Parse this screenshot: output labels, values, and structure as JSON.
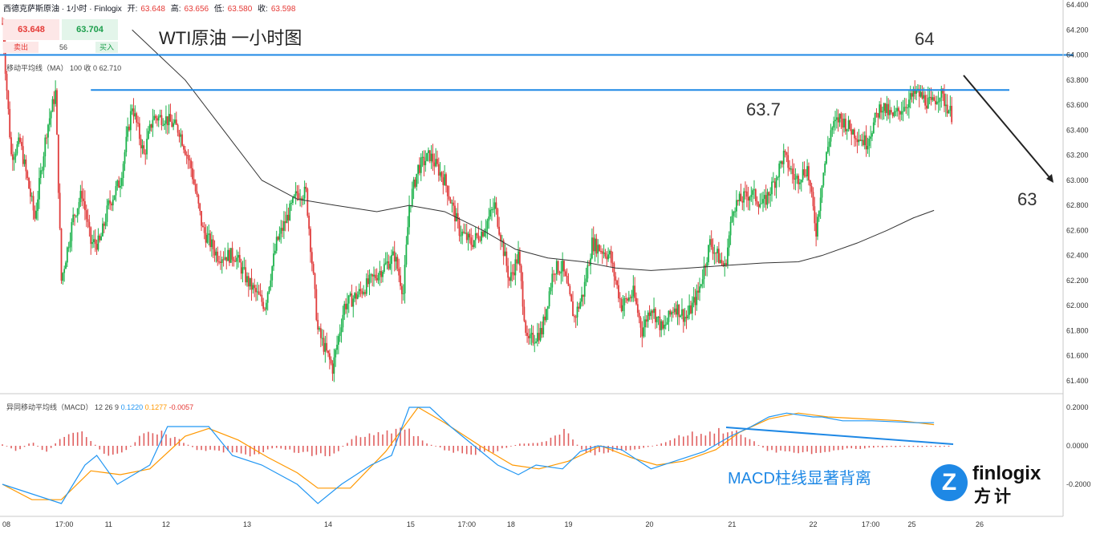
{
  "header": {
    "symbol": "西德克萨斯原油 · 1小时 · Finlogix",
    "open_label": "开:",
    "open": "63.648",
    "high_label": "高:",
    "high": "63.656",
    "low_label": "低:",
    "low": "63.580",
    "close_label": "收:",
    "close": "63.598"
  },
  "trade_box": {
    "sell_price": "63.648",
    "buy_price": "63.704",
    "sell_label": "卖出",
    "buy_label": "买入",
    "spread": "56"
  },
  "ma_indicator": {
    "label": "移动平均线（MA）",
    "params": "100 收 0",
    "value": "62.710"
  },
  "macd_indicator": {
    "label": "异同移动平均线（MACD）",
    "params": "12 26 9",
    "macd": "0.1220",
    "signal": "0.1277",
    "hist": "-0.0057"
  },
  "annotations": {
    "title": "WTI原油 一小时图",
    "level_64": "64",
    "level_637": "63.7",
    "level_63": "63",
    "macd_note": "MACD柱线显著背离"
  },
  "logo": {
    "text": "finlogix",
    "cn": "方计",
    "mark": "Z"
  },
  "colors": {
    "up": "#1bb24b",
    "down": "#e03c3c",
    "ma": "#333333",
    "macd": "#2196f3",
    "signal": "#ff9800",
    "hist": "#e06060",
    "level": "#1e88e5"
  },
  "chart_data": {
    "type": "candlestick",
    "price_axis": {
      "ylim": [
        61.3,
        64.4
      ],
      "ticks": [
        "64.400",
        "64.200",
        "64.000",
        "63.800",
        "63.600",
        "63.400",
        "63.200",
        "63.000",
        "62.800",
        "62.600",
        "62.400",
        "62.200",
        "62.000",
        "61.800",
        "61.600",
        "61.400"
      ]
    },
    "macd_axis": {
      "ylim": [
        -0.29,
        0.23
      ],
      "ticks": [
        "0.2000",
        "0.0000",
        "-0.2000"
      ]
    },
    "x_labels": [
      "08",
      "17:00",
      "11",
      "12",
      "13",
      "14",
      "15",
      "17:00",
      "18",
      "19",
      "20",
      "21",
      "22",
      "17:00",
      "25",
      "26"
    ],
    "x_label_positions": [
      0,
      42,
      72,
      111,
      166,
      221,
      277,
      315,
      345,
      384,
      439,
      495,
      550,
      589,
      617,
      663
    ],
    "bars_total": 645,
    "price_path": [
      [
        0,
        64.25
      ],
      [
        6,
        63.2
      ],
      [
        12,
        63.3
      ],
      [
        22,
        62.7
      ],
      [
        30,
        63.4
      ],
      [
        36,
        63.7
      ],
      [
        40,
        62.2
      ],
      [
        48,
        62.7
      ],
      [
        54,
        62.9
      ],
      [
        60,
        62.5
      ],
      [
        66,
        62.5
      ],
      [
        72,
        62.8
      ],
      [
        80,
        63.0
      ],
      [
        88,
        63.6
      ],
      [
        96,
        63.2
      ],
      [
        102,
        63.5
      ],
      [
        110,
        63.5
      ],
      [
        120,
        63.4
      ],
      [
        128,
        63.1
      ],
      [
        136,
        62.6
      ],
      [
        146,
        62.4
      ],
      [
        158,
        62.4
      ],
      [
        166,
        62.2
      ],
      [
        178,
        62.0
      ],
      [
        186,
        62.5
      ],
      [
        200,
        62.9
      ],
      [
        206,
        62.9
      ],
      [
        214,
        61.8
      ],
      [
        224,
        61.5
      ],
      [
        232,
        62.0
      ],
      [
        242,
        62.1
      ],
      [
        258,
        62.3
      ],
      [
        266,
        62.4
      ],
      [
        272,
        62.1
      ],
      [
        276,
        62.8
      ],
      [
        282,
        63.1
      ],
      [
        290,
        63.2
      ],
      [
        300,
        63.0
      ],
      [
        310,
        62.6
      ],
      [
        318,
        62.5
      ],
      [
        326,
        62.6
      ],
      [
        334,
        62.8
      ],
      [
        344,
        62.2
      ],
      [
        350,
        62.4
      ],
      [
        356,
        61.7
      ],
      [
        366,
        61.8
      ],
      [
        374,
        62.3
      ],
      [
        380,
        62.3
      ],
      [
        388,
        61.9
      ],
      [
        394,
        62.1
      ],
      [
        400,
        62.5
      ],
      [
        412,
        62.4
      ],
      [
        420,
        62.0
      ],
      [
        428,
        62.1
      ],
      [
        434,
        61.8
      ],
      [
        440,
        62.0
      ],
      [
        448,
        61.8
      ],
      [
        456,
        62.0
      ],
      [
        464,
        61.9
      ],
      [
        472,
        62.1
      ],
      [
        480,
        62.5
      ],
      [
        490,
        62.3
      ],
      [
        496,
        62.8
      ],
      [
        508,
        62.9
      ],
      [
        516,
        62.8
      ],
      [
        524,
        63.0
      ],
      [
        530,
        63.2
      ],
      [
        538,
        63.0
      ],
      [
        546,
        63.1
      ],
      [
        552,
        62.6
      ],
      [
        556,
        63.0
      ],
      [
        562,
        63.4
      ],
      [
        568,
        63.5
      ],
      [
        576,
        63.4
      ],
      [
        586,
        63.3
      ],
      [
        596,
        63.6
      ],
      [
        604,
        63.5
      ],
      [
        612,
        63.6
      ],
      [
        620,
        63.7
      ],
      [
        630,
        63.6
      ],
      [
        636,
        63.7
      ],
      [
        645,
        63.5
      ]
    ],
    "ma100_path": [
      [
        88,
        64.2
      ],
      [
        106,
        64.0
      ],
      [
        124,
        63.8
      ],
      [
        150,
        63.4
      ],
      [
        176,
        63.0
      ],
      [
        200,
        62.85
      ],
      [
        226,
        62.8
      ],
      [
        254,
        62.75
      ],
      [
        276,
        62.8
      ],
      [
        300,
        62.75
      ],
      [
        326,
        62.6
      ],
      [
        348,
        62.45
      ],
      [
        370,
        62.38
      ],
      [
        394,
        62.35
      ],
      [
        416,
        62.3
      ],
      [
        440,
        62.28
      ],
      [
        466,
        62.3
      ],
      [
        490,
        62.32
      ],
      [
        516,
        62.34
      ],
      [
        540,
        62.35
      ],
      [
        556,
        62.4
      ],
      [
        580,
        62.5
      ],
      [
        600,
        62.6
      ],
      [
        618,
        62.7
      ],
      [
        632,
        62.76
      ]
    ],
    "macd_path": [
      [
        0,
        -0.2
      ],
      [
        20,
        -0.25
      ],
      [
        40,
        -0.3
      ],
      [
        56,
        -0.1
      ],
      [
        64,
        -0.05
      ],
      [
        78,
        -0.2
      ],
      [
        100,
        -0.1
      ],
      [
        112,
        0.1
      ],
      [
        124,
        0.1
      ],
      [
        140,
        0.1
      ],
      [
        156,
        -0.05
      ],
      [
        176,
        -0.1
      ],
      [
        200,
        -0.2
      ],
      [
        214,
        -0.3
      ],
      [
        230,
        -0.2
      ],
      [
        250,
        -0.1
      ],
      [
        264,
        -0.05
      ],
      [
        276,
        0.2
      ],
      [
        290,
        0.2
      ],
      [
        304,
        0.1
      ],
      [
        320,
        0.0
      ],
      [
        336,
        -0.1
      ],
      [
        350,
        -0.15
      ],
      [
        362,
        -0.1
      ],
      [
        380,
        -0.12
      ],
      [
        392,
        -0.03
      ],
      [
        404,
        0.0
      ],
      [
        420,
        -0.02
      ],
      [
        440,
        -0.12
      ],
      [
        460,
        -0.07
      ],
      [
        476,
        -0.03
      ],
      [
        494,
        0.05
      ],
      [
        508,
        0.1
      ],
      [
        520,
        0.15
      ],
      [
        532,
        0.17
      ],
      [
        550,
        0.15
      ],
      [
        556,
        0.15
      ],
      [
        570,
        0.13
      ],
      [
        590,
        0.13
      ],
      [
        620,
        0.12
      ],
      [
        632,
        0.12
      ]
    ],
    "signal_path": [
      [
        0,
        -0.2
      ],
      [
        20,
        -0.28
      ],
      [
        40,
        -0.28
      ],
      [
        60,
        -0.13
      ],
      [
        80,
        -0.15
      ],
      [
        100,
        -0.12
      ],
      [
        124,
        0.05
      ],
      [
        140,
        0.09
      ],
      [
        160,
        0.03
      ],
      [
        180,
        -0.06
      ],
      [
        200,
        -0.14
      ],
      [
        214,
        -0.22
      ],
      [
        236,
        -0.22
      ],
      [
        260,
        -0.03
      ],
      [
        282,
        0.2
      ],
      [
        300,
        0.12
      ],
      [
        324,
        0.0
      ],
      [
        346,
        -0.1
      ],
      [
        364,
        -0.12
      ],
      [
        384,
        -0.08
      ],
      [
        406,
        0.0
      ],
      [
        426,
        -0.06
      ],
      [
        444,
        -0.1
      ],
      [
        462,
        -0.08
      ],
      [
        484,
        -0.02
      ],
      [
        500,
        0.07
      ],
      [
        520,
        0.14
      ],
      [
        540,
        0.17
      ],
      [
        560,
        0.15
      ],
      [
        584,
        0.14
      ],
      [
        610,
        0.13
      ],
      [
        632,
        0.11
      ]
    ],
    "hist_profile": [
      [
        0,
        0.01
      ],
      [
        10,
        -0.03
      ],
      [
        20,
        0.02
      ],
      [
        30,
        -0.04
      ],
      [
        44,
        0.08
      ],
      [
        56,
        0.06
      ],
      [
        70,
        -0.05
      ],
      [
        84,
        -0.03
      ],
      [
        100,
        0.1
      ],
      [
        118,
        0.04
      ],
      [
        132,
        -0.02
      ],
      [
        150,
        -0.03
      ],
      [
        168,
        -0.05
      ],
      [
        186,
        -0.01
      ],
      [
        204,
        -0.04
      ],
      [
        222,
        -0.06
      ],
      [
        240,
        0.05
      ],
      [
        256,
        0.06
      ],
      [
        272,
        0.1
      ],
      [
        286,
        0.02
      ],
      [
        300,
        -0.02
      ],
      [
        318,
        -0.05
      ],
      [
        334,
        -0.03
      ],
      [
        350,
        0.01
      ],
      [
        366,
        0.02
      ],
      [
        382,
        0.08
      ],
      [
        396,
        -0.05
      ],
      [
        412,
        -0.03
      ],
      [
        430,
        -0.02
      ],
      [
        446,
        0.01
      ],
      [
        462,
        0.06
      ],
      [
        478,
        0.07
      ],
      [
        492,
        0.09
      ],
      [
        506,
        0.04
      ],
      [
        520,
        -0.03
      ],
      [
        536,
        -0.03
      ],
      [
        552,
        -0.04
      ],
      [
        570,
        -0.02
      ],
      [
        590,
        -0.01
      ],
      [
        610,
        -0.005
      ],
      [
        632,
        -0.006
      ]
    ],
    "levels": [
      64.0,
      63.72
    ],
    "grid": false
  }
}
